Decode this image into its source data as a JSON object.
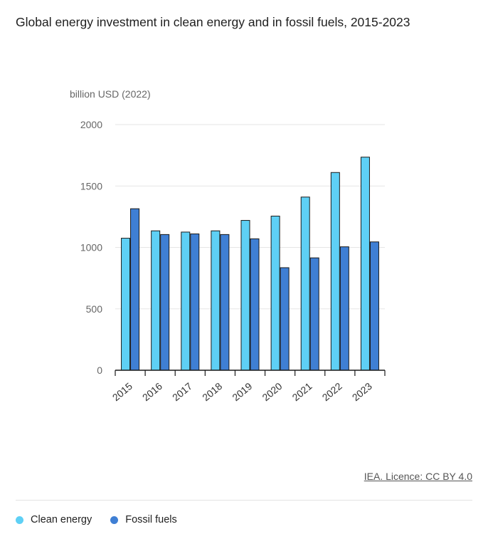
{
  "title": "Global energy investment in clean energy and in fossil fuels, 2015-2023",
  "source": "IEA. Licence: CC BY 4.0",
  "colors": {
    "clean": "#5ed0f5",
    "fossil": "#3f7fd4",
    "axis": "#1a1a1a",
    "grid": "#e6e6e6"
  },
  "legend": [
    {
      "label": "Clean energy",
      "color": "#5ed0f5"
    },
    {
      "label": "Fossil fuels",
      "color": "#3f7fd4"
    }
  ],
  "chart_data": {
    "type": "bar",
    "title": "Global energy investment in clean energy and in fossil fuels, 2015-2023",
    "ylabel": "billion USD (2022)",
    "xlabel": "",
    "categories": [
      "2015",
      "2016",
      "2017",
      "2018",
      "2019",
      "2020",
      "2021",
      "2022",
      "2023"
    ],
    "series": [
      {
        "name": "Clean energy",
        "values": [
          1075,
          1135,
          1125,
          1135,
          1220,
          1255,
          1410,
          1610,
          1735
        ]
      },
      {
        "name": "Fossil fuels",
        "values": [
          1315,
          1105,
          1110,
          1105,
          1070,
          835,
          915,
          1005,
          1045
        ]
      }
    ],
    "ylim": [
      0,
      2000
    ],
    "yticks": [
      0,
      500,
      1000,
      1500,
      2000
    ],
    "grid": true,
    "legend_position": "bottom-left"
  }
}
